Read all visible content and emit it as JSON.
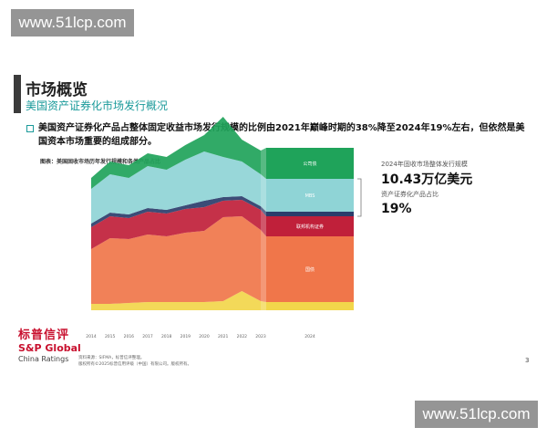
{
  "watermarks": {
    "top": "www.51lcp.com",
    "bottom": "www.51lcp.com"
  },
  "title": "市场概览",
  "subtitle": "美国资产证券化市场发行概况",
  "intro": "美国资产证券化产品占整体固定收益市场发行规模的比例由2021年巅峰时期的38%降至2024年19%左右，但依然是美国资本市场重要的组成部分。",
  "chart_caption": "图表：美国固收市场历年发行规模和各类产品占比",
  "side_panel": {
    "total_label": "2024年固收市场整体发行规模",
    "total_value": "10.43万亿美元",
    "share_label": "资产证券化产品占比",
    "share_value": "19%"
  },
  "logo": {
    "cn": "标普信评",
    "en": "S&P Global",
    "sub": "China Ratings"
  },
  "footnotes": [
    "资料来源：SIFMA，标普信评整理。",
    "版权所有©2025标普信用评级（中国）有限公司。版权所有。"
  ],
  "page_number": "3",
  "chart_data": {
    "type": "area",
    "title": "美国固收市场历年发行规模和各类产品占比",
    "x_labels": [
      "2014",
      "2015",
      "2016",
      "2017",
      "2018",
      "2019",
      "2020",
      "2021",
      "2022",
      "2023",
      "2024"
    ],
    "series": [
      {
        "name": "",
        "color": "#f2d64b",
        "values": [
          0.35,
          0.35,
          0.4,
          0.45,
          0.45,
          0.45,
          0.45,
          0.5,
          1.05,
          0.5,
          0.45
        ]
      },
      {
        "name": "",
        "color": "#f0764a",
        "values": [
          3.0,
          3.6,
          3.5,
          3.7,
          3.6,
          3.8,
          3.9,
          4.6,
          4.1,
          3.9,
          3.6
        ]
      },
      {
        "name": "",
        "color": "#c0203a",
        "values": [
          1.2,
          1.2,
          1.15,
          1.25,
          1.25,
          1.3,
          1.3,
          0.9,
          0.9,
          1.1,
          1.1
        ]
      },
      {
        "name": "",
        "color": "#2b3d6b",
        "values": [
          0.2,
          0.2,
          0.2,
          0.2,
          0.2,
          0.2,
          0.35,
          0.2,
          0.2,
          0.2,
          0.25
        ]
      },
      {
        "name": "",
        "color": "#8fd4d6",
        "values": [
          1.9,
          2.1,
          2.0,
          2.3,
          2.2,
          2.5,
          2.7,
          2.2,
          1.9,
          1.75,
          1.8
        ]
      },
      {
        "name": "",
        "color": "#1fa35a",
        "values": [
          0.6,
          0.7,
          0.7,
          0.7,
          0.7,
          0.8,
          0.9,
          2.2,
          1.2,
          1.3,
          1.7
        ]
      }
    ],
    "highlight_column": {
      "year": "2024",
      "segment_labels": [
        "",
        "国债",
        "联邦机构证券",
        "",
        "MBS",
        "公司债"
      ]
    },
    "grid": false,
    "legend": "none"
  }
}
